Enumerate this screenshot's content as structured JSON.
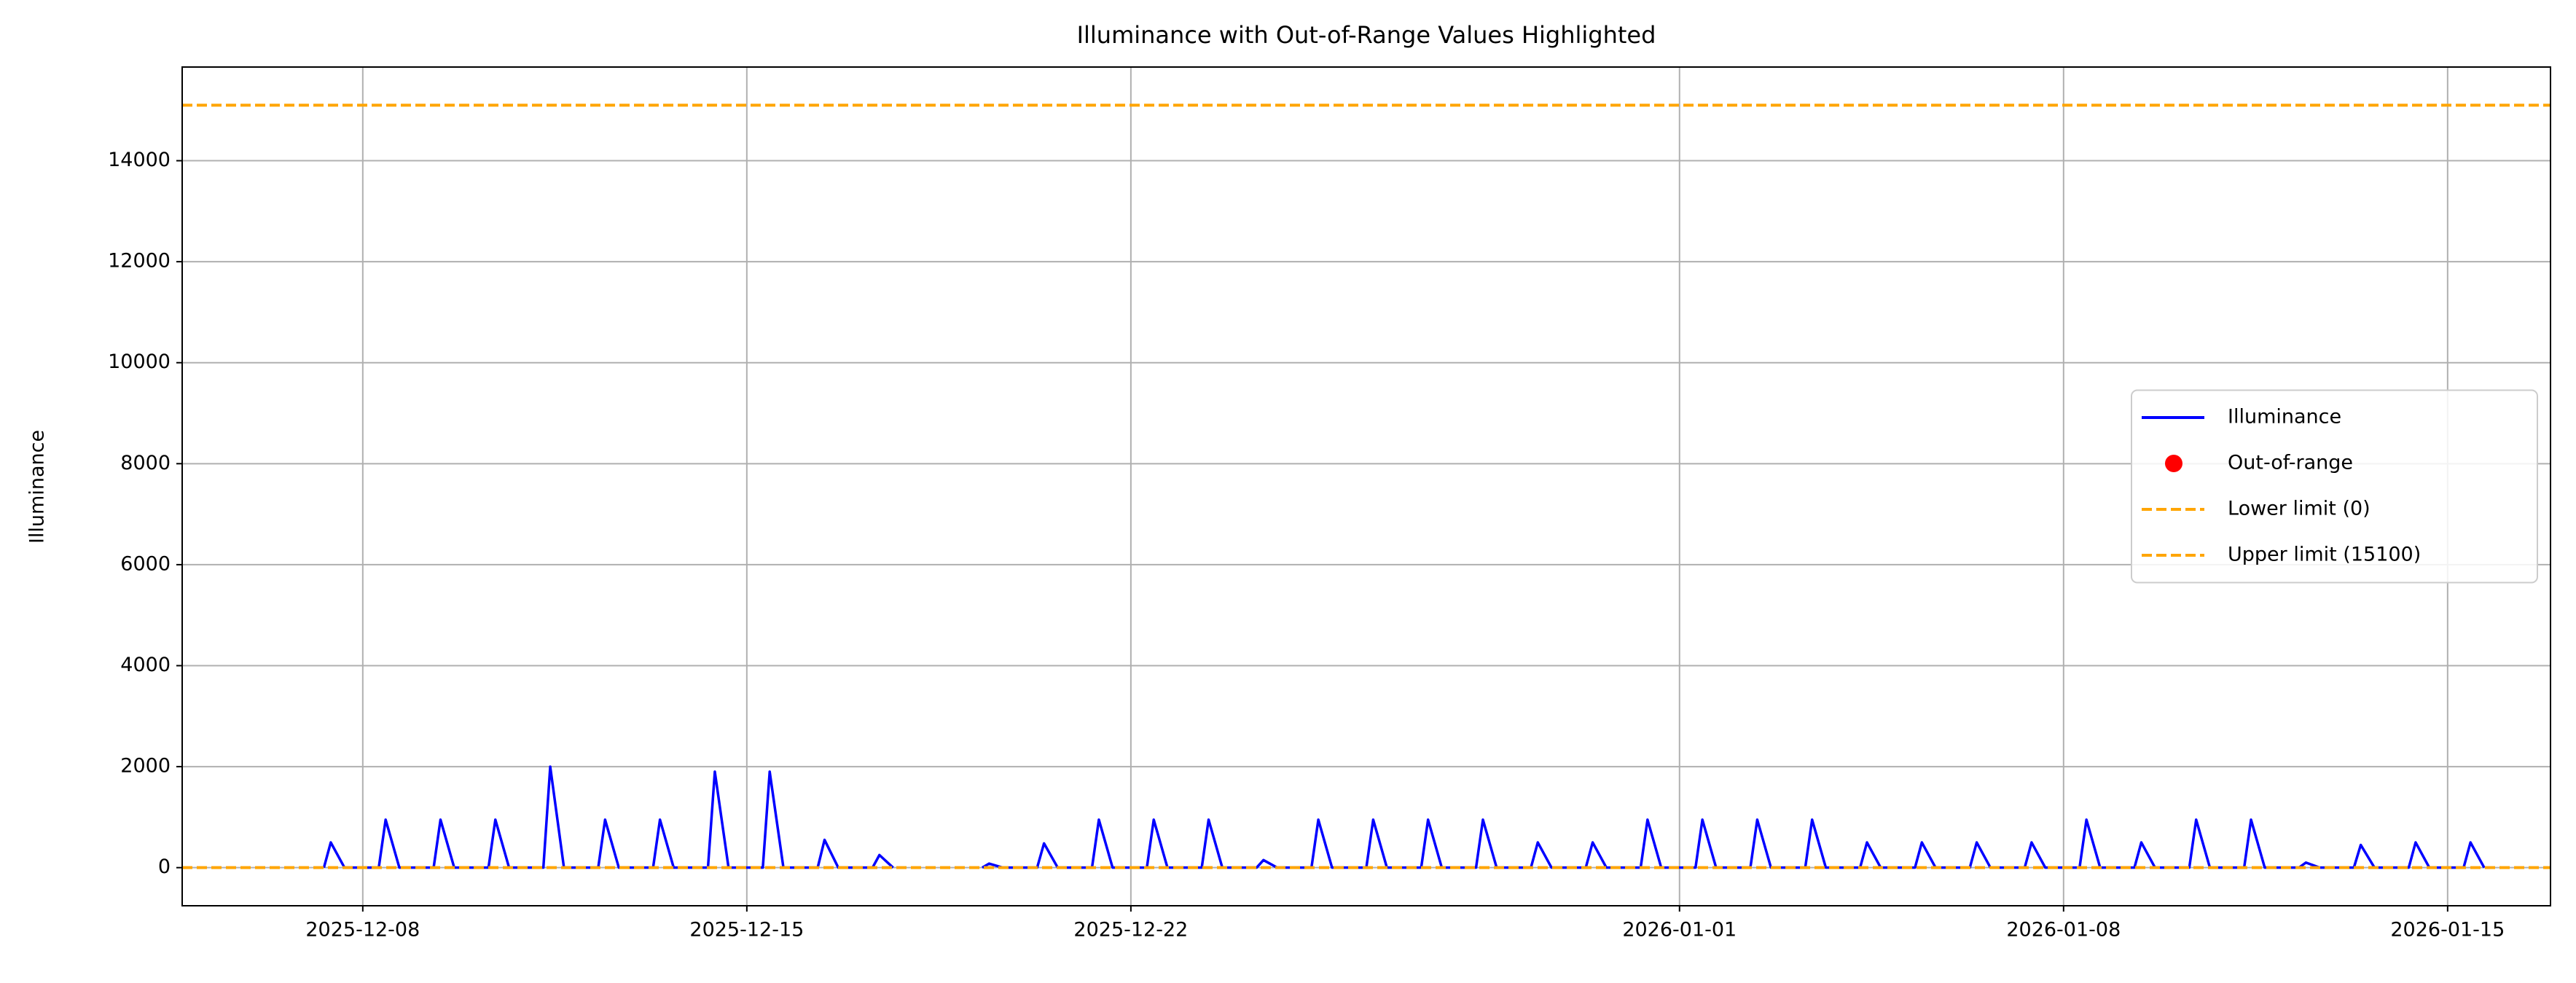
{
  "chart_data": {
    "type": "line",
    "title": "Illuminance with Out-of-Range Values Highlighted",
    "y_label": "Illuminance",
    "x": [
      "2025-12-07 07:00",
      "2025-12-07 10:00",
      "2025-12-07 16:00",
      "2025-12-08 07:00",
      "2025-12-08 10:00",
      "2025-12-08 16:00",
      "2025-12-09 07:00",
      "2025-12-09 10:00",
      "2025-12-09 16:00",
      "2025-12-10 07:00",
      "2025-12-10 10:00",
      "2025-12-10 16:00",
      "2025-12-11 07:00",
      "2025-12-11 10:00",
      "2025-12-11 16:00",
      "2025-12-12 07:00",
      "2025-12-12 10:00",
      "2025-12-12 16:00",
      "2025-12-13 07:00",
      "2025-12-13 10:00",
      "2025-12-13 16:00",
      "2025-12-14 07:00",
      "2025-12-14 10:00",
      "2025-12-14 16:00",
      "2025-12-15 07:00",
      "2025-12-15 10:00",
      "2025-12-15 16:00",
      "2025-12-16 07:00",
      "2025-12-16 10:00",
      "2025-12-16 16:00",
      "2025-12-17 07:00",
      "2025-12-17 10:00",
      "2025-12-17 16:00",
      "2025-12-18 12:00",
      "2025-12-19 07:00",
      "2025-12-19 10:00",
      "2025-12-19 16:00",
      "2025-12-20 07:00",
      "2025-12-20 10:00",
      "2025-12-20 16:00",
      "2025-12-21 07:00",
      "2025-12-21 10:00",
      "2025-12-21 16:00",
      "2025-12-22 07:00",
      "2025-12-22 10:00",
      "2025-12-22 16:00",
      "2025-12-23 07:00",
      "2025-12-23 10:00",
      "2025-12-23 16:00",
      "2025-12-24 07:00",
      "2025-12-24 10:00",
      "2025-12-24 16:00",
      "2025-12-25 07:00",
      "2025-12-25 10:00",
      "2025-12-25 16:00",
      "2025-12-26 07:00",
      "2025-12-26 10:00",
      "2025-12-26 16:00",
      "2025-12-27 07:00",
      "2025-12-27 10:00",
      "2025-12-27 16:00",
      "2025-12-28 07:00",
      "2025-12-28 10:00",
      "2025-12-28 16:00",
      "2025-12-29 07:00",
      "2025-12-29 10:00",
      "2025-12-29 16:00",
      "2025-12-30 07:00",
      "2025-12-30 10:00",
      "2025-12-30 16:00",
      "2025-12-31 07:00",
      "2025-12-31 10:00",
      "2025-12-31 16:00",
      "2026-01-01 07:00",
      "2026-01-01 10:00",
      "2026-01-01 16:00",
      "2026-01-02 07:00",
      "2026-01-02 10:00",
      "2026-01-02 16:00",
      "2026-01-03 07:00",
      "2026-01-03 10:00",
      "2026-01-03 16:00",
      "2026-01-04 07:00",
      "2026-01-04 10:00",
      "2026-01-04 16:00",
      "2026-01-05 07:00",
      "2026-01-05 10:00",
      "2026-01-05 16:00",
      "2026-01-06 07:00",
      "2026-01-06 10:00",
      "2026-01-06 16:00",
      "2026-01-07 07:00",
      "2026-01-07 10:00",
      "2026-01-07 16:00",
      "2026-01-08 07:00",
      "2026-01-08 10:00",
      "2026-01-08 16:00",
      "2026-01-09 07:00",
      "2026-01-09 10:00",
      "2026-01-09 16:00",
      "2026-01-10 07:00",
      "2026-01-10 10:00",
      "2026-01-10 16:00",
      "2026-01-11 07:00",
      "2026-01-11 10:00",
      "2026-01-11 16:00",
      "2026-01-12 07:00",
      "2026-01-12 10:00",
      "2026-01-12 16:00",
      "2026-01-13 07:00",
      "2026-01-13 10:00",
      "2026-01-13 16:00",
      "2026-01-14 07:00",
      "2026-01-14 10:00",
      "2026-01-14 16:00",
      "2026-01-15 07:00",
      "2026-01-15 10:00",
      "2026-01-15 16:00"
    ],
    "series": [
      {
        "name": "Illuminance",
        "color": "#0000ff",
        "values": [
          0,
          500,
          0,
          0,
          950,
          0,
          0,
          950,
          0,
          0,
          950,
          0,
          0,
          2000,
          0,
          0,
          950,
          0,
          0,
          950,
          0,
          0,
          1900,
          0,
          0,
          1900,
          0,
          0,
          550,
          0,
          0,
          250,
          0,
          null,
          0,
          80,
          0,
          0,
          480,
          0,
          0,
          950,
          0,
          0,
          950,
          0,
          0,
          950,
          0,
          0,
          150,
          0,
          0,
          950,
          0,
          0,
          950,
          0,
          0,
          950,
          0,
          0,
          950,
          0,
          0,
          500,
          0,
          0,
          500,
          0,
          0,
          950,
          0,
          0,
          950,
          0,
          0,
          950,
          0,
          0,
          950,
          0,
          0,
          500,
          0,
          0,
          500,
          0,
          0,
          500,
          0,
          0,
          500,
          0,
          0,
          950,
          0,
          0,
          500,
          0,
          0,
          950,
          0,
          0,
          950,
          0,
          0,
          100,
          0,
          0,
          450,
          0,
          0,
          500,
          0,
          0,
          500,
          0
        ]
      },
      {
        "name": "Out-of-range",
        "color": "#ff0000",
        "kind": "scatter",
        "x": [],
        "values": []
      }
    ],
    "hlines": [
      {
        "name": "Lower limit (0)",
        "value": 0,
        "color": "#ffa500"
      },
      {
        "name": "Upper limit (15100)",
        "value": 15100,
        "color": "#ffa500"
      }
    ],
    "xlim": [
      "2025-12-04 17:00",
      "2026-01-16 21:00"
    ],
    "xticks": [
      "2025-12-08",
      "2025-12-15",
      "2025-12-22",
      "2026-01-01",
      "2026-01-08",
      "2026-01-15"
    ],
    "ylim": [
      -755,
      15855
    ],
    "yticks": [
      0,
      2000,
      4000,
      6000,
      8000,
      10000,
      12000,
      14000
    ],
    "grid": true,
    "legend": "center right"
  }
}
